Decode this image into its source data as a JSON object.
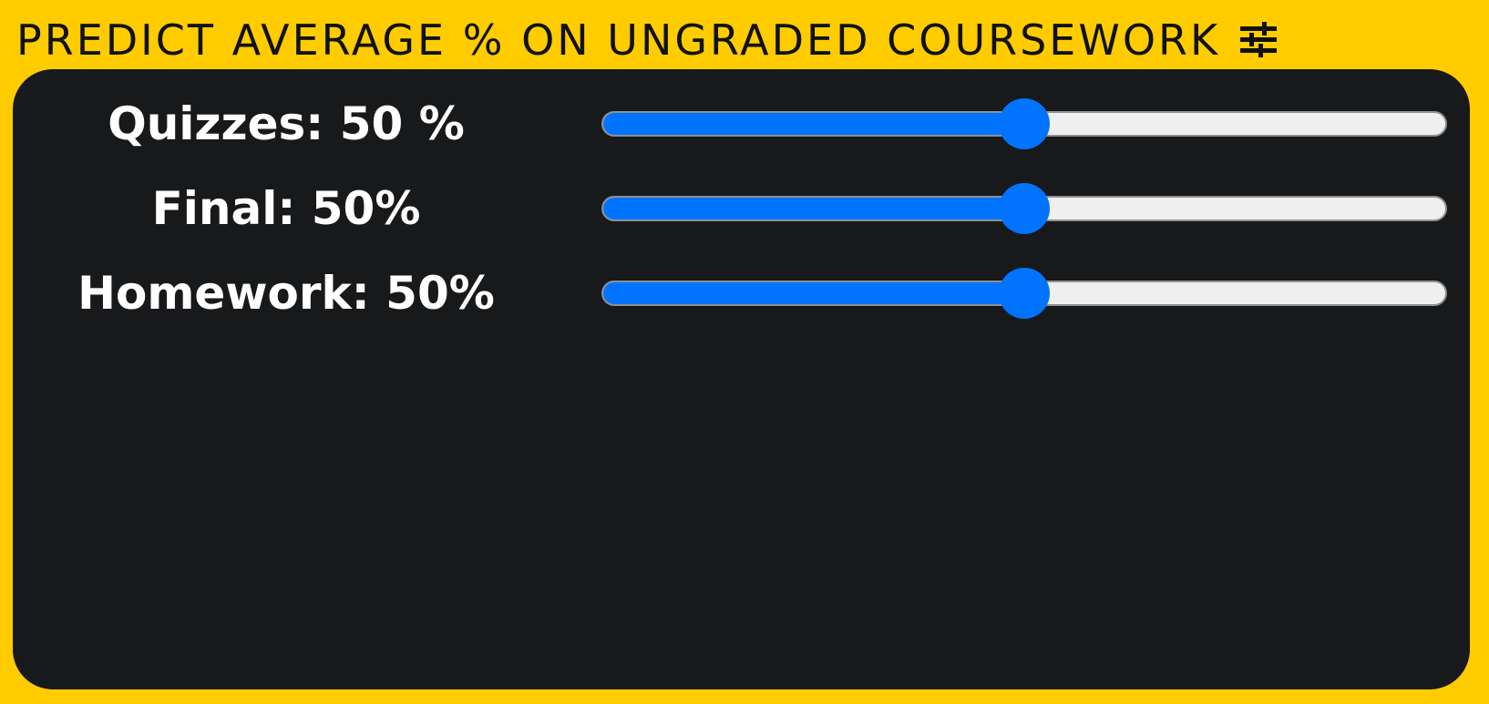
{
  "header": {
    "title": "PREDICT AVERAGE % ON UNGRADED COURSEWORK",
    "icon": "sliders-icon"
  },
  "colors": {
    "background": "#ffcc00",
    "panel": "#18191b",
    "accent": "#0074ff",
    "track": "#efefef",
    "text": "#ffffff"
  },
  "sliders": [
    {
      "label": "Quizzes: 50 %",
      "value": 50,
      "min": 0,
      "max": 100
    },
    {
      "label": "Final: 50%",
      "value": 50,
      "min": 0,
      "max": 100
    },
    {
      "label": "Homework: 50%",
      "value": 50,
      "min": 0,
      "max": 100
    }
  ]
}
